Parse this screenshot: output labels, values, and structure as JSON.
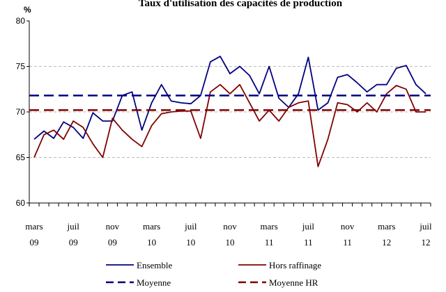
{
  "chart_data": {
    "type": "line",
    "title": "Taux d'utilisation des capacités de production",
    "y_label": "%",
    "categories": [
      "mars 09",
      null,
      null,
      null,
      "juil 09",
      null,
      null,
      null,
      "nov 09",
      null,
      null,
      null,
      "mars 10",
      null,
      null,
      null,
      "juil 10",
      null,
      null,
      null,
      "nov 10",
      null,
      null,
      null,
      "mars 11",
      null,
      null,
      null,
      "juil 11",
      null,
      null,
      null,
      "nov 11",
      null,
      null,
      null,
      "mars 12",
      null,
      null,
      null,
      "juil 12"
    ],
    "series": [
      {
        "name": "Ensemble",
        "color": "#000080",
        "style": "solid",
        "values": [
          67.0,
          67.9,
          67.1,
          68.9,
          68.3,
          67.1,
          69.9,
          69.0,
          69.0,
          71.8,
          72.2,
          68.0,
          71.0,
          73.0,
          71.2,
          71.0,
          70.9,
          71.8,
          75.5,
          76.1,
          74.2,
          75.0,
          74.0,
          72.0,
          75.0,
          71.5,
          70.5,
          72.0,
          76.0,
          70.2,
          71.0,
          73.8,
          74.1,
          73.2,
          72.2,
          73.0,
          73.0,
          74.8,
          75.1,
          73.0,
          72.0
        ]
      },
      {
        "name": "Hors raffinage",
        "color": "#800000",
        "style": "solid",
        "values": [
          65.0,
          67.5,
          68.0,
          67.0,
          69.0,
          68.3,
          66.5,
          65.0,
          69.3,
          68.0,
          67.0,
          66.2,
          68.5,
          69.8,
          70.0,
          70.1,
          70.1,
          67.1,
          72.2,
          73.0,
          72.0,
          73.0,
          71.0,
          69.0,
          70.2,
          69.0,
          70.5,
          71.0,
          71.2,
          64.0,
          67.0,
          71.0,
          70.8,
          70.0,
          71.0,
          70.0,
          72.0,
          72.9,
          72.5,
          70.0,
          70.0
        ]
      },
      {
        "name": "Moyenne",
        "color": "#000080",
        "style": "dashed",
        "value": 71.8
      },
      {
        "name": "Moyenne HR",
        "color": "#800000",
        "style": "dashed",
        "value": 70.2
      }
    ],
    "ylim": [
      60,
      80
    ],
    "yticks": [
      60,
      65,
      70,
      75,
      80
    ],
    "grid": true
  }
}
